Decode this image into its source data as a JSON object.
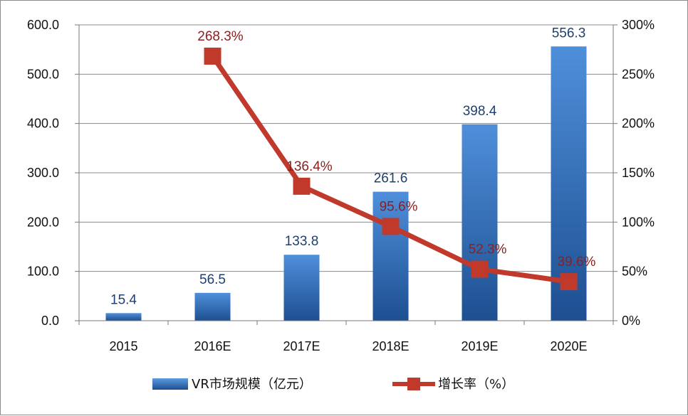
{
  "chart_data": {
    "type": "bar",
    "categories": [
      "2015",
      "2016E",
      "2017E",
      "2018E",
      "2019E",
      "2020E"
    ],
    "series": [
      {
        "name": "VR市场规模（亿元）",
        "type": "bar",
        "axis": "left",
        "values": [
          15.4,
          56.5,
          133.8,
          261.6,
          398.4,
          556.3
        ],
        "labels": [
          "15.4",
          "56.5",
          "133.8",
          "261.6",
          "398.4",
          "556.3"
        ],
        "color": "#2e6fc0"
      },
      {
        "name": "增长率（%）",
        "type": "line",
        "axis": "right",
        "values": [
          null,
          268.3,
          136.4,
          95.6,
          52.3,
          39.6
        ],
        "labels": [
          "",
          "268.3%",
          "136.4%",
          "95.6%",
          "52.3%",
          "39.6%"
        ],
        "color": "#c0392b",
        "marker": "square"
      }
    ],
    "y_left": {
      "min": 0,
      "max": 600,
      "step": 100,
      "tick_labels": [
        "0.0",
        "100.0",
        "200.0",
        "300.0",
        "400.0",
        "500.0",
        "600.0"
      ]
    },
    "y_right": {
      "min": 0,
      "max": 300,
      "step": 50,
      "tick_labels": [
        "0%",
        "50%",
        "100%",
        "150%",
        "200%",
        "250%",
        "300%"
      ]
    },
    "grid": "horizontal",
    "legend_position": "bottom"
  }
}
